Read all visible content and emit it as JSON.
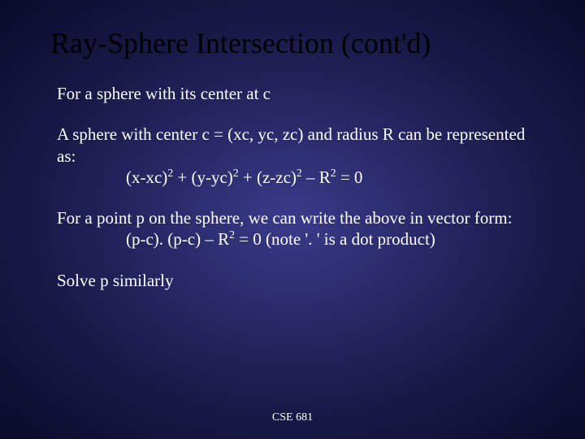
{
  "title": "Ray-Sphere Intersection (cont'd)",
  "p1": "For a sphere with its center at c",
  "p2a": "A sphere with center c = (xc, yc, zc) and radius R can be represented as:",
  "eq1_a": "(x-xc)",
  "eq1_b": " + (y-yc)",
  "eq1_c": " + (z-zc)",
  "eq1_d": " – R",
  "eq1_e": "  = 0",
  "p3a": "For a point p on the sphere, we can write the above in vector form:",
  "eq2_a": "(p-c). (p-c) – R",
  "eq2_b": " = 0  (note '. ' is a dot product)",
  "p4": "Solve p similarly",
  "footer": "CSE 681",
  "exp2": "2"
}
